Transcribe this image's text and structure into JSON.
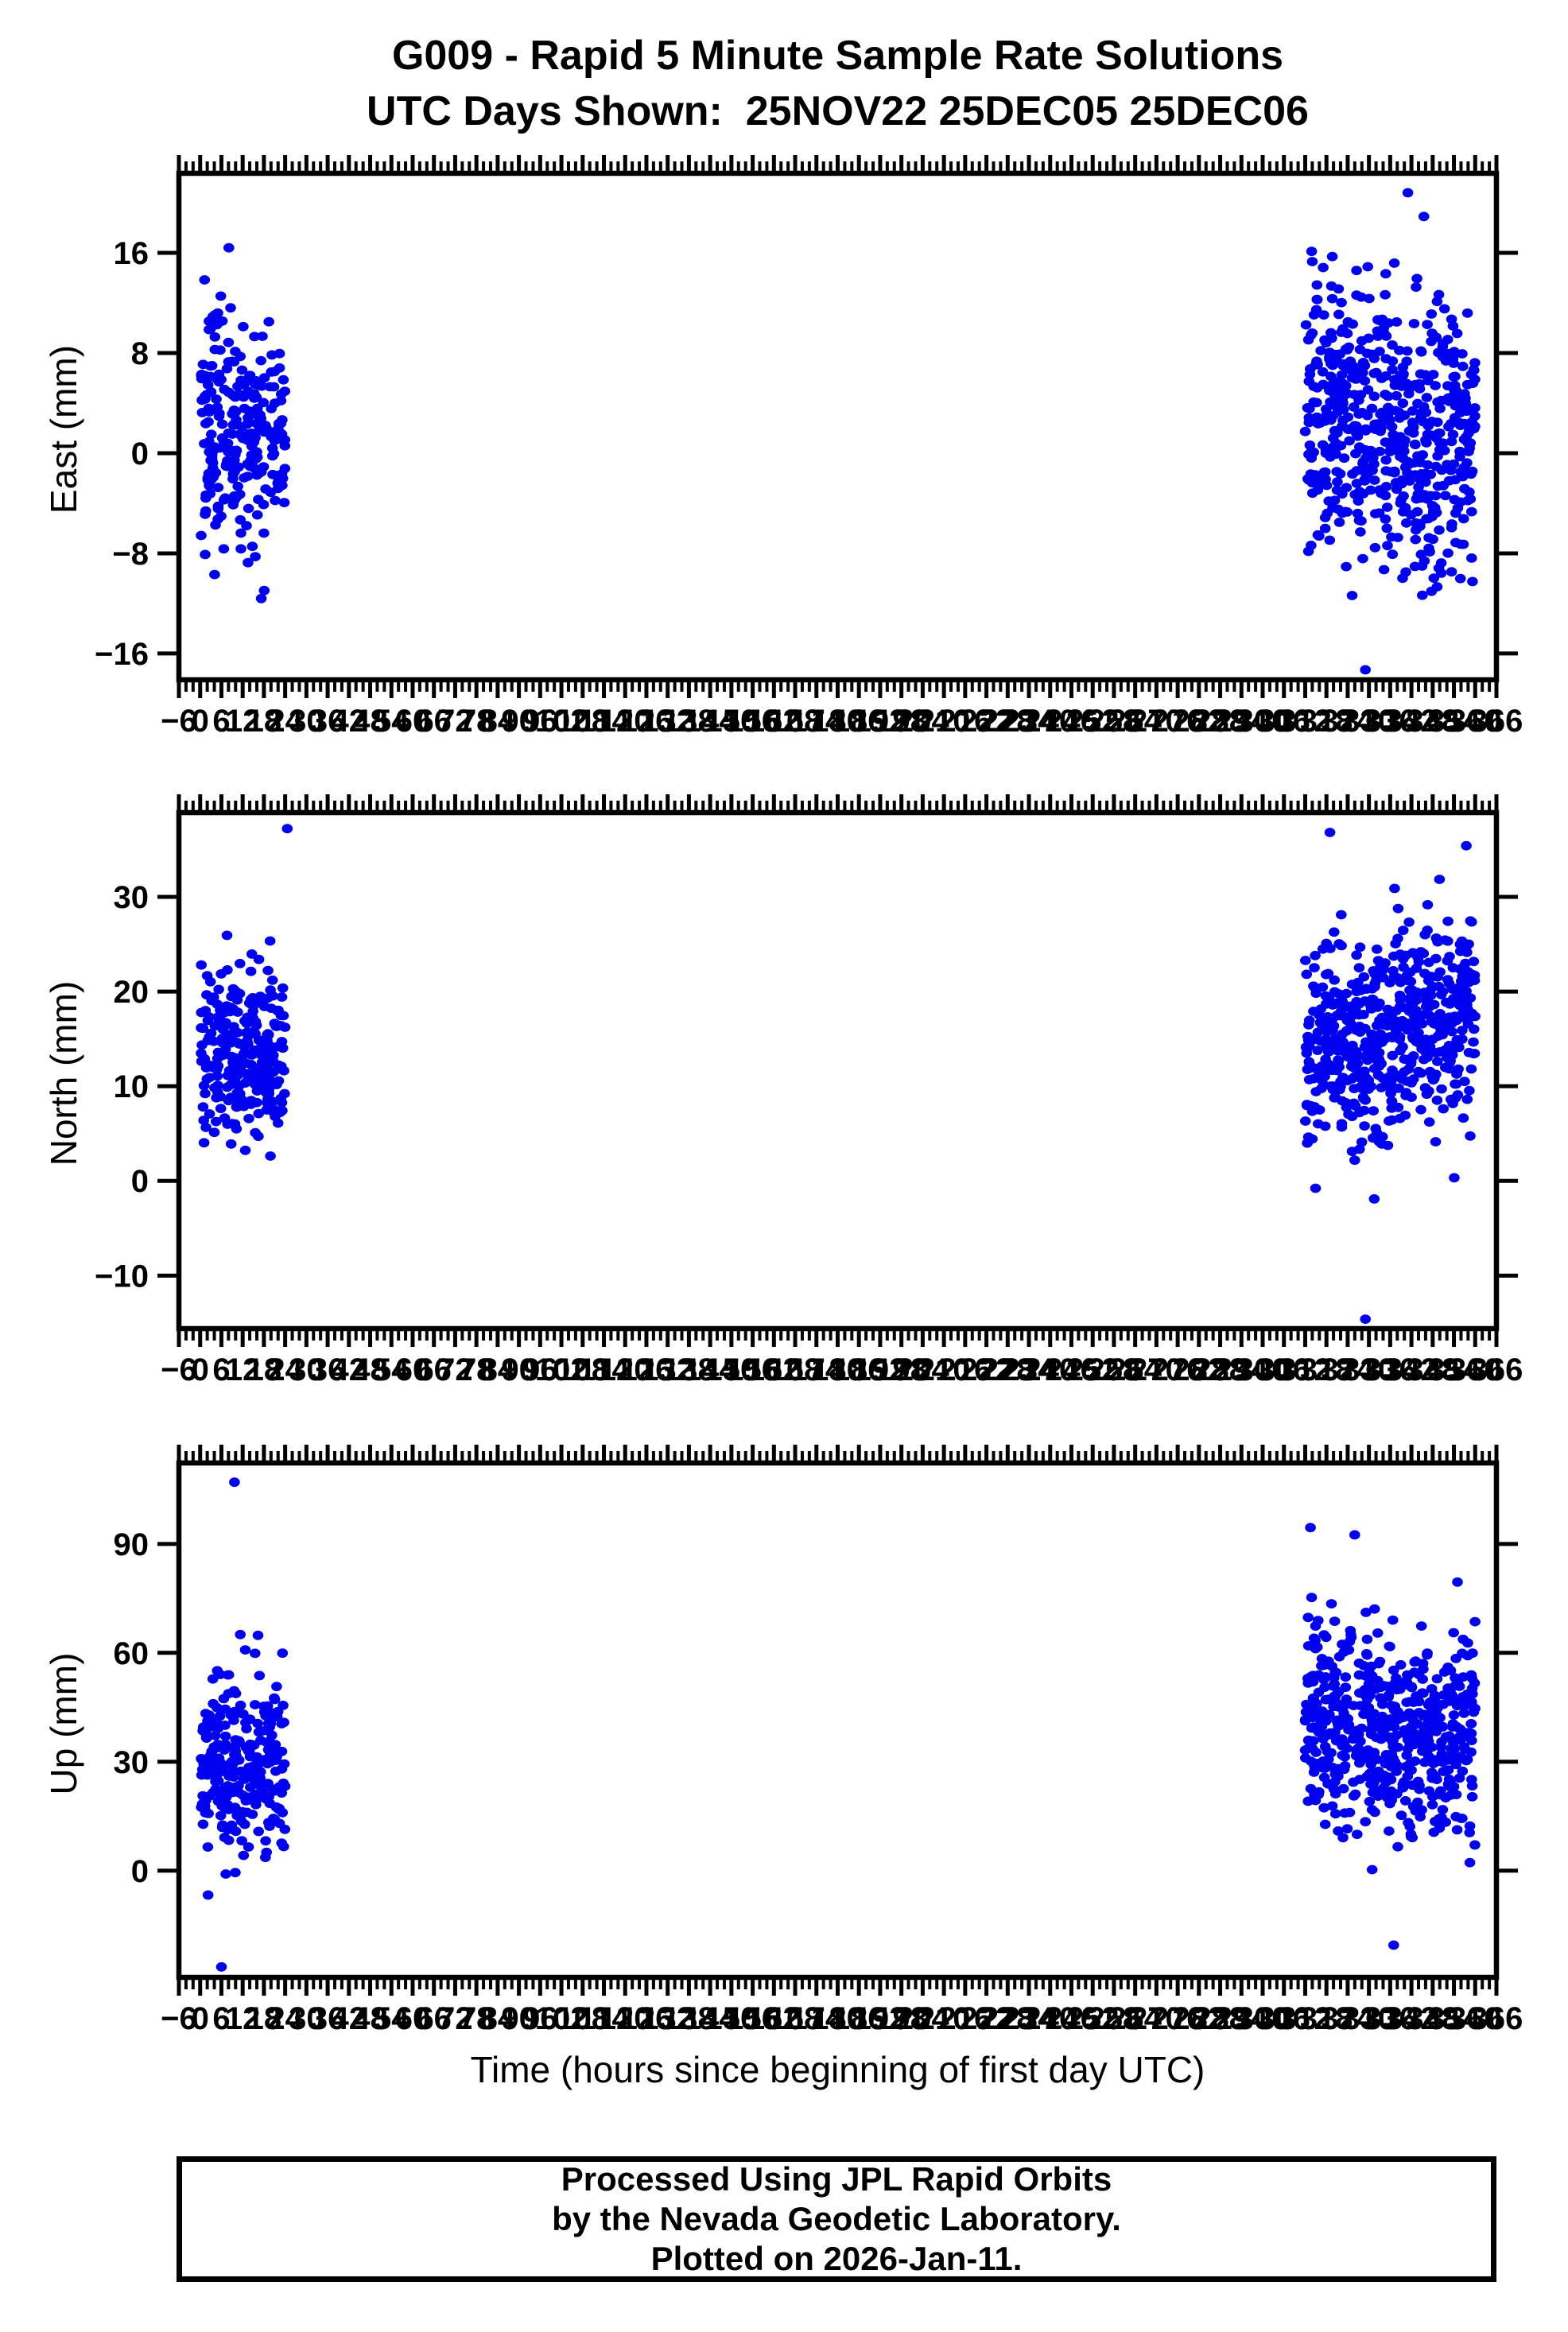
{
  "title": "G009 - Rapid 5 Minute Sample Rate Solutions",
  "subtitle": "UTC Days Shown:  25NOV22 25DEC05 25DEC06",
  "xlabel": "Time (hours since beginning of first day UTC)",
  "footer": {
    "line1": "Processed Using JPL Rapid Orbits",
    "line2": "by the Nevada Geodetic Laboratory.",
    "line3": "Plotted on 2026-Jan-11."
  },
  "colors": {
    "point": "#0000F0",
    "axis": "#000000",
    "background": "#FFFFFF"
  },
  "chart_data": {
    "type": "scatter",
    "title": "G009 - Rapid 5 Minute Sample Rate Solutions",
    "subtitle": "UTC Days Shown:  25NOV22 25DEC05 25DEC06",
    "xlabel": "Time (hours since beginning of first day UTC)",
    "x_axis": {
      "min": -6,
      "max": 366,
      "major_tick_step": 6,
      "minor_tick_step": 2,
      "label_step": 6,
      "note": "labels every 6 h from -6 to 366, heavily overlapping"
    },
    "marker": {
      "shape": "circle",
      "color": "#0000F0",
      "radius_px": 6.6
    },
    "days_shown": [
      "25NOV22",
      "25DEC05",
      "25DEC06"
    ],
    "sample_rate": "5 minute",
    "panels": [
      {
        "id": "east",
        "ylabel": "East (mm)",
        "y_min": -18.1,
        "y_max": 22.35,
        "y_ticks": [
          -16,
          -8,
          0,
          8,
          16
        ],
        "clusters": [
          {
            "seed": 11,
            "n": 268,
            "t_min": 0.25,
            "t_max": 24,
            "mean": 1.8,
            "sd": 4.3,
            "lo": -12.8,
            "hi": 14.8
          },
          {
            "seed": 12,
            "n": 288,
            "t_min": 312,
            "t_max": 336,
            "mean": 3.0,
            "sd": 5.0,
            "lo": -12.0,
            "hi": 17.5
          },
          {
            "seed": 13,
            "n": 282,
            "t_min": 336,
            "t_max": 360,
            "mean": 0.8,
            "sd": 5.6,
            "lo": -14.5,
            "hi": 20.5
          }
        ],
        "outliers": [
          [
            8.1,
            16.4
          ],
          [
            314,
            15.3
          ],
          [
            329,
            -17.3
          ],
          [
            341,
            20.8
          ],
          [
            345.5,
            18.9
          ]
        ]
      },
      {
        "id": "north",
        "ylabel": "North (mm)",
        "y_min": -15.6,
        "y_max": 38.9,
        "y_ticks": [
          -10,
          0,
          10,
          20,
          30
        ],
        "clusters": [
          {
            "seed": 21,
            "n": 268,
            "t_min": 0.25,
            "t_max": 24,
            "mean": 13.8,
            "sd": 4.6,
            "lo": -1.8,
            "hi": 33.2
          },
          {
            "seed": 22,
            "n": 288,
            "t_min": 312,
            "t_max": 336,
            "mean": 14.8,
            "sd": 5.0,
            "lo": -3.0,
            "hi": 33.0
          },
          {
            "seed": 23,
            "n": 282,
            "t_min": 336,
            "t_max": 360,
            "mean": 16.2,
            "sd": 5.4,
            "lo": -3.5,
            "hi": 33.0
          }
        ],
        "outliers": [
          [
            24.6,
            37.2
          ],
          [
            319,
            36.8
          ],
          [
            357.5,
            35.4
          ],
          [
            329,
            -14.6
          ]
        ]
      },
      {
        "id": "up",
        "ylabel": "Up (mm)",
        "y_min": -29.4,
        "y_max": 112.3,
        "y_ticks": [
          0,
          30,
          60,
          90
        ],
        "clusters": [
          {
            "seed": 31,
            "n": 268,
            "t_min": 0.25,
            "t_max": 24,
            "mean": 29,
            "sd": 12.5,
            "lo": -11.5,
            "hi": 66
          },
          {
            "seed": 32,
            "n": 288,
            "t_min": 312,
            "t_max": 336,
            "mean": 41,
            "sd": 13.0,
            "lo": -4.0,
            "hi": 78
          },
          {
            "seed": 33,
            "n": 282,
            "t_min": 336,
            "t_max": 360,
            "mean": 38,
            "sd": 14.0,
            "lo": -16.0,
            "hi": 70
          }
        ],
        "outliers": [
          [
            9.7,
            107
          ],
          [
            6,
            -26.5
          ],
          [
            313.5,
            94.5
          ],
          [
            326,
            92.5
          ],
          [
            355,
            79.5
          ],
          [
            337,
            -20.5
          ]
        ]
      }
    ]
  }
}
